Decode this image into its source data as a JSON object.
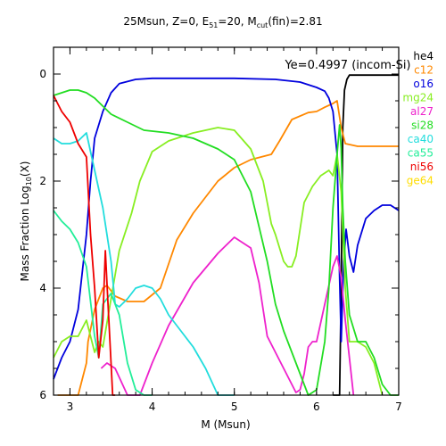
{
  "chart_data": {
    "type": "line",
    "title_parts": {
      "a": "25Msun, Z=0, E",
      "b": "51",
      "c": "=20, M",
      "d": "cut",
      "e": "(fin)=2.81"
    },
    "annotation": "Ye=0.4997 (incom-Si)",
    "xlabel": "M (Msun)",
    "ylabel_parts": {
      "a": "Mass Fraction Log",
      "b": "10",
      "c": "(X)"
    },
    "xlim": [
      2.8,
      7.0
    ],
    "ylim": [
      -6,
      0.5
    ],
    "xticks": [
      3,
      4,
      5,
      6,
      7
    ],
    "yticks": [
      0,
      -2,
      -4,
      -6
    ],
    "ytick_labels": [
      "0",
      "2",
      "4",
      "6"
    ],
    "legend_position": "outside-right",
    "series": [
      {
        "name": "he4",
        "color": "#000000",
        "x": [
          6.2,
          6.28,
          6.3,
          6.32,
          6.34,
          6.37,
          6.4,
          6.5,
          7.0
        ],
        "y": [
          -6.0,
          -6.0,
          -4.0,
          -1.0,
          -0.3,
          -0.1,
          -0.02,
          -0.02,
          -0.02
        ]
      },
      {
        "name": "c12",
        "color": "#ff8800",
        "x": [
          2.85,
          2.9,
          3.0,
          3.1,
          3.2,
          3.22,
          3.3,
          3.4,
          3.45,
          3.55,
          3.7,
          3.9,
          4.1,
          4.3,
          4.5,
          4.8,
          5.0,
          5.2,
          5.45,
          5.55,
          5.7,
          5.9,
          6.0,
          6.1,
          6.2,
          6.25,
          6.3,
          6.35,
          6.5,
          6.7,
          7.0
        ],
        "y": [
          -6.0,
          -6.0,
          -6.0,
          -6.0,
          -5.4,
          -5.0,
          -4.4,
          -4.0,
          -3.95,
          -4.15,
          -4.25,
          -4.25,
          -4.0,
          -3.1,
          -2.6,
          -2.0,
          -1.75,
          -1.6,
          -1.5,
          -1.25,
          -0.85,
          -0.72,
          -0.7,
          -0.62,
          -0.55,
          -0.5,
          -1.0,
          -1.3,
          -1.35,
          -1.35,
          -1.35
        ]
      },
      {
        "name": "o16",
        "color": "#0000dd",
        "x": [
          2.8,
          2.9,
          3.0,
          3.1,
          3.2,
          3.25,
          3.3,
          3.4,
          3.5,
          3.6,
          3.8,
          4.0,
          4.5,
          5.0,
          5.5,
          5.8,
          6.0,
          6.1,
          6.15,
          6.2,
          6.25,
          6.28,
          6.3,
          6.33,
          6.36,
          6.4,
          6.45,
          6.5,
          6.6,
          6.7,
          6.8,
          6.9,
          7.0
        ],
        "y": [
          -5.7,
          -5.3,
          -5.0,
          -4.4,
          -3.0,
          -2.0,
          -1.2,
          -0.7,
          -0.35,
          -0.18,
          -0.1,
          -0.08,
          -0.08,
          -0.08,
          -0.1,
          -0.15,
          -0.25,
          -0.32,
          -0.45,
          -0.7,
          -1.5,
          -3.8,
          -5.0,
          -3.5,
          -2.9,
          -3.4,
          -3.7,
          -3.2,
          -2.7,
          -2.55,
          -2.45,
          -2.45,
          -2.55
        ]
      },
      {
        "name": "mg24",
        "color": "#88ee22",
        "x": [
          2.8,
          2.9,
          3.0,
          3.1,
          3.2,
          3.3,
          3.35,
          3.4,
          3.6,
          3.75,
          3.85,
          4.0,
          4.2,
          4.5,
          4.8,
          5.0,
          5.2,
          5.35,
          5.45,
          5.5,
          5.6,
          5.65,
          5.7,
          5.75,
          5.85,
          5.95,
          6.05,
          6.15,
          6.2,
          6.25,
          6.3,
          6.35,
          6.4,
          6.5,
          6.6,
          6.7,
          6.8
        ],
        "y": [
          -5.3,
          -5.0,
          -4.9,
          -4.9,
          -4.6,
          -5.2,
          -5.0,
          -5.1,
          -3.3,
          -2.6,
          -2.0,
          -1.45,
          -1.25,
          -1.1,
          -1.0,
          -1.05,
          -1.4,
          -2.0,
          -2.8,
          -3.0,
          -3.5,
          -3.6,
          -3.6,
          -3.4,
          -2.4,
          -2.1,
          -1.9,
          -1.8,
          -1.9,
          -1.5,
          -2.2,
          -4.0,
          -5.0,
          -5.0,
          -5.1,
          -5.4,
          -6.0
        ]
      },
      {
        "name": "al27",
        "color": "#ee22cc",
        "x": [
          3.38,
          3.45,
          3.55,
          3.7,
          3.85,
          4.0,
          4.2,
          4.5,
          4.8,
          5.0,
          5.2,
          5.3,
          5.4,
          5.5,
          5.6,
          5.7,
          5.75,
          5.8,
          5.85,
          5.9,
          5.95,
          6.0,
          6.1,
          6.2,
          6.25,
          6.3,
          6.35,
          6.4,
          6.45
        ],
        "y": [
          -5.5,
          -5.4,
          -5.5,
          -6.0,
          -6.0,
          -5.4,
          -4.7,
          -3.9,
          -3.35,
          -3.05,
          -3.25,
          -3.9,
          -4.9,
          -5.2,
          -5.5,
          -5.8,
          -5.95,
          -5.9,
          -5.6,
          -5.1,
          -5.0,
          -5.0,
          -4.3,
          -3.6,
          -3.4,
          -3.8,
          -4.6,
          -5.3,
          -6.0
        ]
      },
      {
        "name": "si28",
        "color": "#22dd22",
        "x": [
          2.8,
          2.9,
          3.0,
          3.1,
          3.2,
          3.3,
          3.4,
          3.5,
          3.7,
          3.9,
          4.2,
          4.5,
          4.8,
          5.0,
          5.2,
          5.4,
          5.5,
          5.6,
          5.7,
          5.8,
          5.9,
          6.0,
          6.1,
          6.15,
          6.2,
          6.25,
          6.28,
          6.3,
          6.32,
          6.35,
          6.4,
          6.5,
          6.6,
          6.7,
          6.8,
          6.9,
          7.0
        ],
        "y": [
          -0.4,
          -0.35,
          -0.3,
          -0.3,
          -0.35,
          -0.45,
          -0.6,
          -0.75,
          -0.9,
          -1.05,
          -1.1,
          -1.2,
          -1.4,
          -1.6,
          -2.2,
          -3.5,
          -4.3,
          -4.8,
          -5.2,
          -5.6,
          -6.0,
          -5.9,
          -5.0,
          -4.0,
          -2.5,
          -1.5,
          -0.95,
          -1.4,
          -2.5,
          -3.5,
          -4.5,
          -5.0,
          -5.0,
          -5.3,
          -5.8,
          -6.0,
          -6.0
        ]
      },
      {
        "name": "ca40",
        "color": "#22dddd",
        "x": [
          2.8,
          2.9,
          3.0,
          3.1,
          3.2,
          3.3,
          3.4,
          3.5,
          3.55,
          3.6,
          3.7,
          3.8,
          3.9,
          4.0,
          4.1,
          4.2,
          4.35,
          4.5,
          4.65,
          4.8,
          5.0
        ],
        "y": [
          -1.2,
          -1.3,
          -1.3,
          -1.25,
          -1.1,
          -1.8,
          -2.5,
          -3.5,
          -4.3,
          -4.35,
          -4.2,
          -4.0,
          -3.95,
          -4.0,
          -4.2,
          -4.5,
          -4.8,
          -5.1,
          -5.5,
          -6.0,
          -6.0
        ]
      },
      {
        "name": "ca55",
        "color": "#22ee99",
        "x": [
          2.8,
          2.9,
          3.0,
          3.1,
          3.2,
          3.3,
          3.35,
          3.4,
          3.5,
          3.6,
          3.7,
          3.8,
          3.9,
          4.0
        ],
        "y": [
          -2.55,
          -2.75,
          -2.9,
          -3.15,
          -3.6,
          -4.9,
          -5.3,
          -4.3,
          -4.1,
          -4.5,
          -5.4,
          -5.9,
          -6.0,
          -6.0
        ]
      },
      {
        "name": "ni56",
        "color": "#ee0000",
        "x": [
          2.8,
          2.9,
          3.0,
          3.05,
          3.1,
          3.2,
          3.25,
          3.3,
          3.35,
          3.4,
          3.43,
          3.46,
          3.5,
          3.52,
          3.55
        ],
        "y": [
          -0.4,
          -0.7,
          -0.9,
          -1.1,
          -1.3,
          -1.55,
          -3.0,
          -4.0,
          -5.3,
          -4.6,
          -3.3,
          -4.2,
          -5.4,
          -6.0,
          -6.0
        ]
      },
      {
        "name": "ge64",
        "color": "#ffdd00",
        "x": [],
        "y": []
      }
    ]
  }
}
